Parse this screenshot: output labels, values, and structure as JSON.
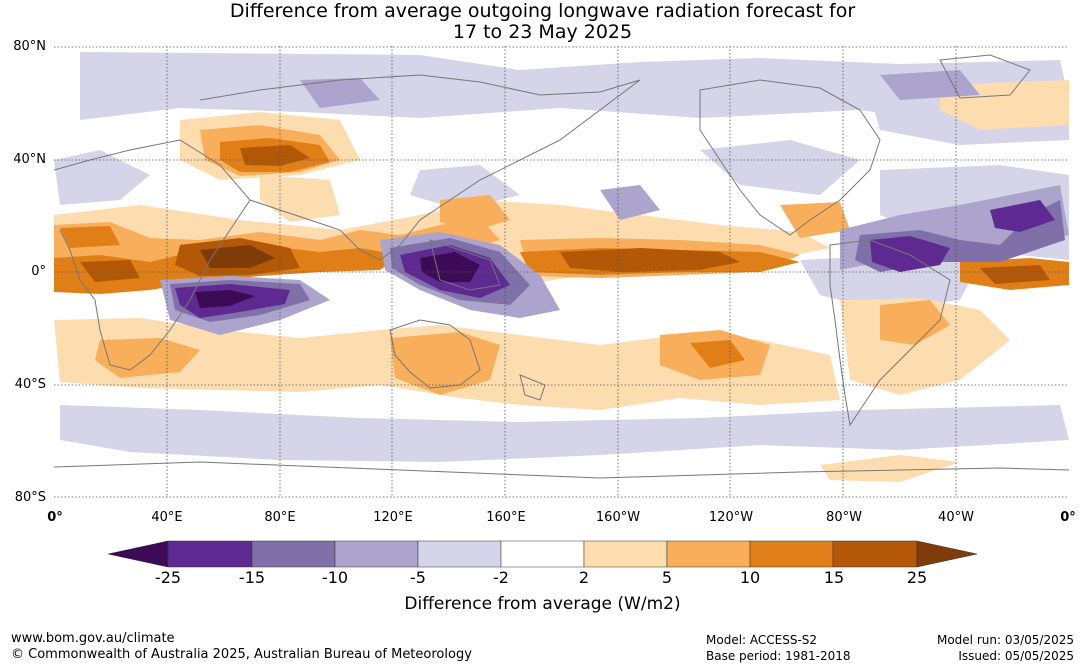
{
  "title_line1": "Difference from average outgoing longwave radiation forecast for",
  "title_line2": "17 to 23 May 2025",
  "lat_labels": [
    "80°N",
    "40°N",
    "0°",
    "40°S",
    "80°S"
  ],
  "lon_labels": [
    "0°",
    "40°E",
    "80°E",
    "120°E",
    "160°E",
    "160°W",
    "120°W",
    "80°W",
    "40°W",
    "0°"
  ],
  "colorbar": {
    "title": "Difference from average (W/m2)",
    "ticks": [
      "-25",
      "-15",
      "-10",
      "-5",
      "-2",
      "2",
      "5",
      "10",
      "15",
      "25"
    ],
    "colors": [
      "#3d0a55",
      "#5e2a91",
      "#8070aa",
      "#aca4cc",
      "#d6d4e8",
      "#ffffff",
      "#fddcb0",
      "#f8ae5a",
      "#e07f17",
      "#b35806",
      "#7f3b08"
    ]
  },
  "footer": {
    "url": "www.bom.gov.au/climate",
    "copyright": "© Commonwealth of Australia 2025, Australian Bureau of Meteorology",
    "model": "Model: ACCESS-S2",
    "base_period": "Base period: 1981-2018",
    "model_run": "Model run: 03/05/2025",
    "issued": "Issued: 05/05/2025"
  }
}
